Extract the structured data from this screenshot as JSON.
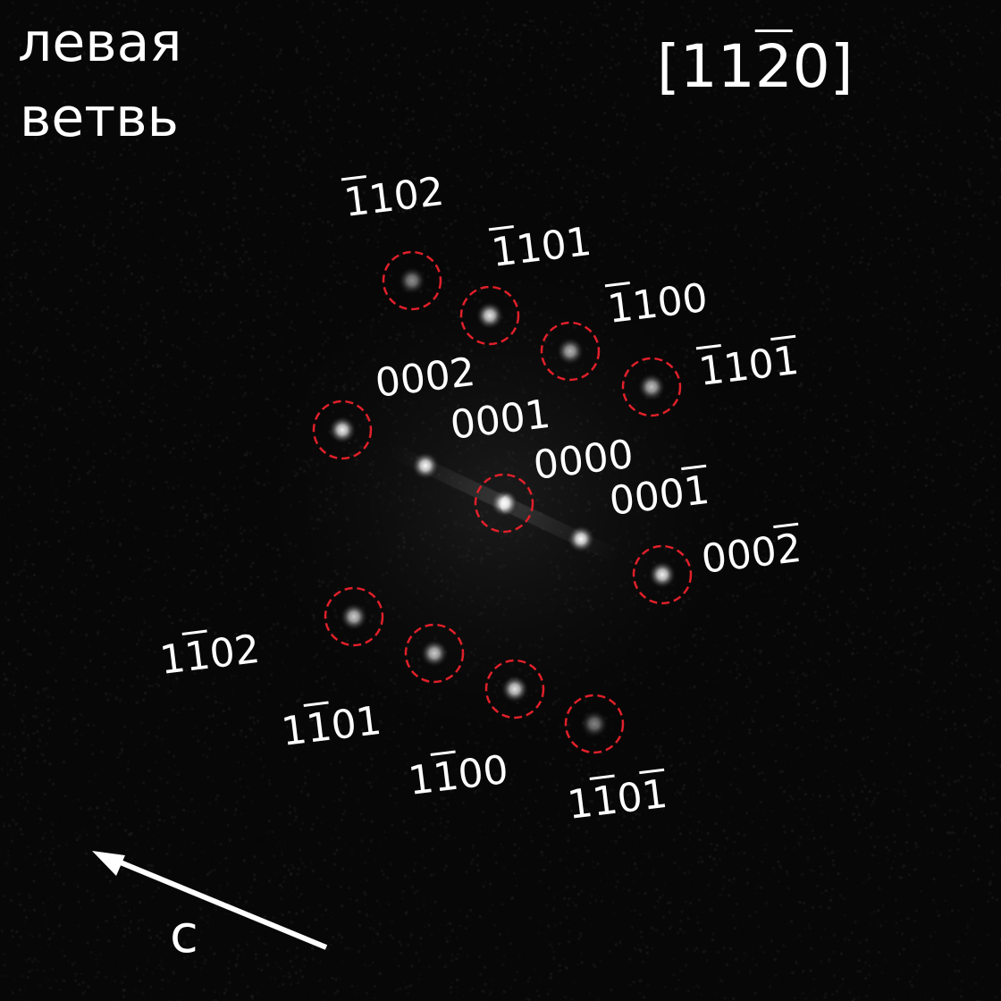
{
  "title": {
    "line1": "левая",
    "line2": "ветвь"
  },
  "zone_axis": {
    "open": "[",
    "d1": "1",
    "d2": "1",
    "d3": "2",
    "d4": "0",
    "close": "]",
    "overlined_digit": 3
  },
  "axis_arrow_label": "c",
  "colors": {
    "background": "#070707",
    "circle": "#e0202a",
    "text": "#ffffff",
    "arrow": "#ffffff"
  },
  "reflections": [
    {
      "id": "m1102",
      "digits": [
        "1",
        "1",
        "0",
        "2"
      ],
      "overlined": [
        0
      ],
      "circled": true,
      "intensity": 0.55
    },
    {
      "id": "m1101",
      "digits": [
        "1",
        "1",
        "0",
        "1"
      ],
      "overlined": [
        0
      ],
      "circled": true,
      "intensity": 0.9
    },
    {
      "id": "m1100",
      "digits": [
        "1",
        "1",
        "0",
        "0"
      ],
      "overlined": [
        0
      ],
      "circled": true,
      "intensity": 0.7
    },
    {
      "id": "m110m1",
      "digits": [
        "1",
        "1",
        "0",
        "1"
      ],
      "overlined": [
        0,
        3
      ],
      "circled": true,
      "intensity": 0.75
    },
    {
      "id": "0002",
      "digits": [
        "0",
        "0",
        "0",
        "2"
      ],
      "overlined": [],
      "circled": true,
      "intensity": 0.95
    },
    {
      "id": "0001",
      "digits": [
        "0",
        "0",
        "0",
        "1"
      ],
      "overlined": [],
      "circled": false,
      "intensity": 1.0
    },
    {
      "id": "0000",
      "digits": [
        "0",
        "0",
        "0",
        "0"
      ],
      "overlined": [],
      "circled": true,
      "intensity": 1.0
    },
    {
      "id": "000m1",
      "digits": [
        "0",
        "0",
        "0",
        "1"
      ],
      "overlined": [
        3
      ],
      "circled": false,
      "intensity": 1.0
    },
    {
      "id": "000m2",
      "digits": [
        "0",
        "0",
        "0",
        "2"
      ],
      "overlined": [
        3
      ],
      "circled": true,
      "intensity": 0.95
    },
    {
      "id": "1m102",
      "digits": [
        "1",
        "1",
        "0",
        "2"
      ],
      "overlined": [
        1
      ],
      "circled": true,
      "intensity": 0.8
    },
    {
      "id": "1m101",
      "digits": [
        "1",
        "1",
        "0",
        "1"
      ],
      "overlined": [
        1
      ],
      "circled": true,
      "intensity": 0.8
    },
    {
      "id": "1m100",
      "digits": [
        "1",
        "1",
        "0",
        "0"
      ],
      "overlined": [
        1
      ],
      "circled": true,
      "intensity": 0.9
    },
    {
      "id": "1m10m1",
      "digits": [
        "1",
        "1",
        "0",
        "1"
      ],
      "overlined": [
        1,
        3
      ],
      "circled": true,
      "intensity": 0.5
    }
  ]
}
